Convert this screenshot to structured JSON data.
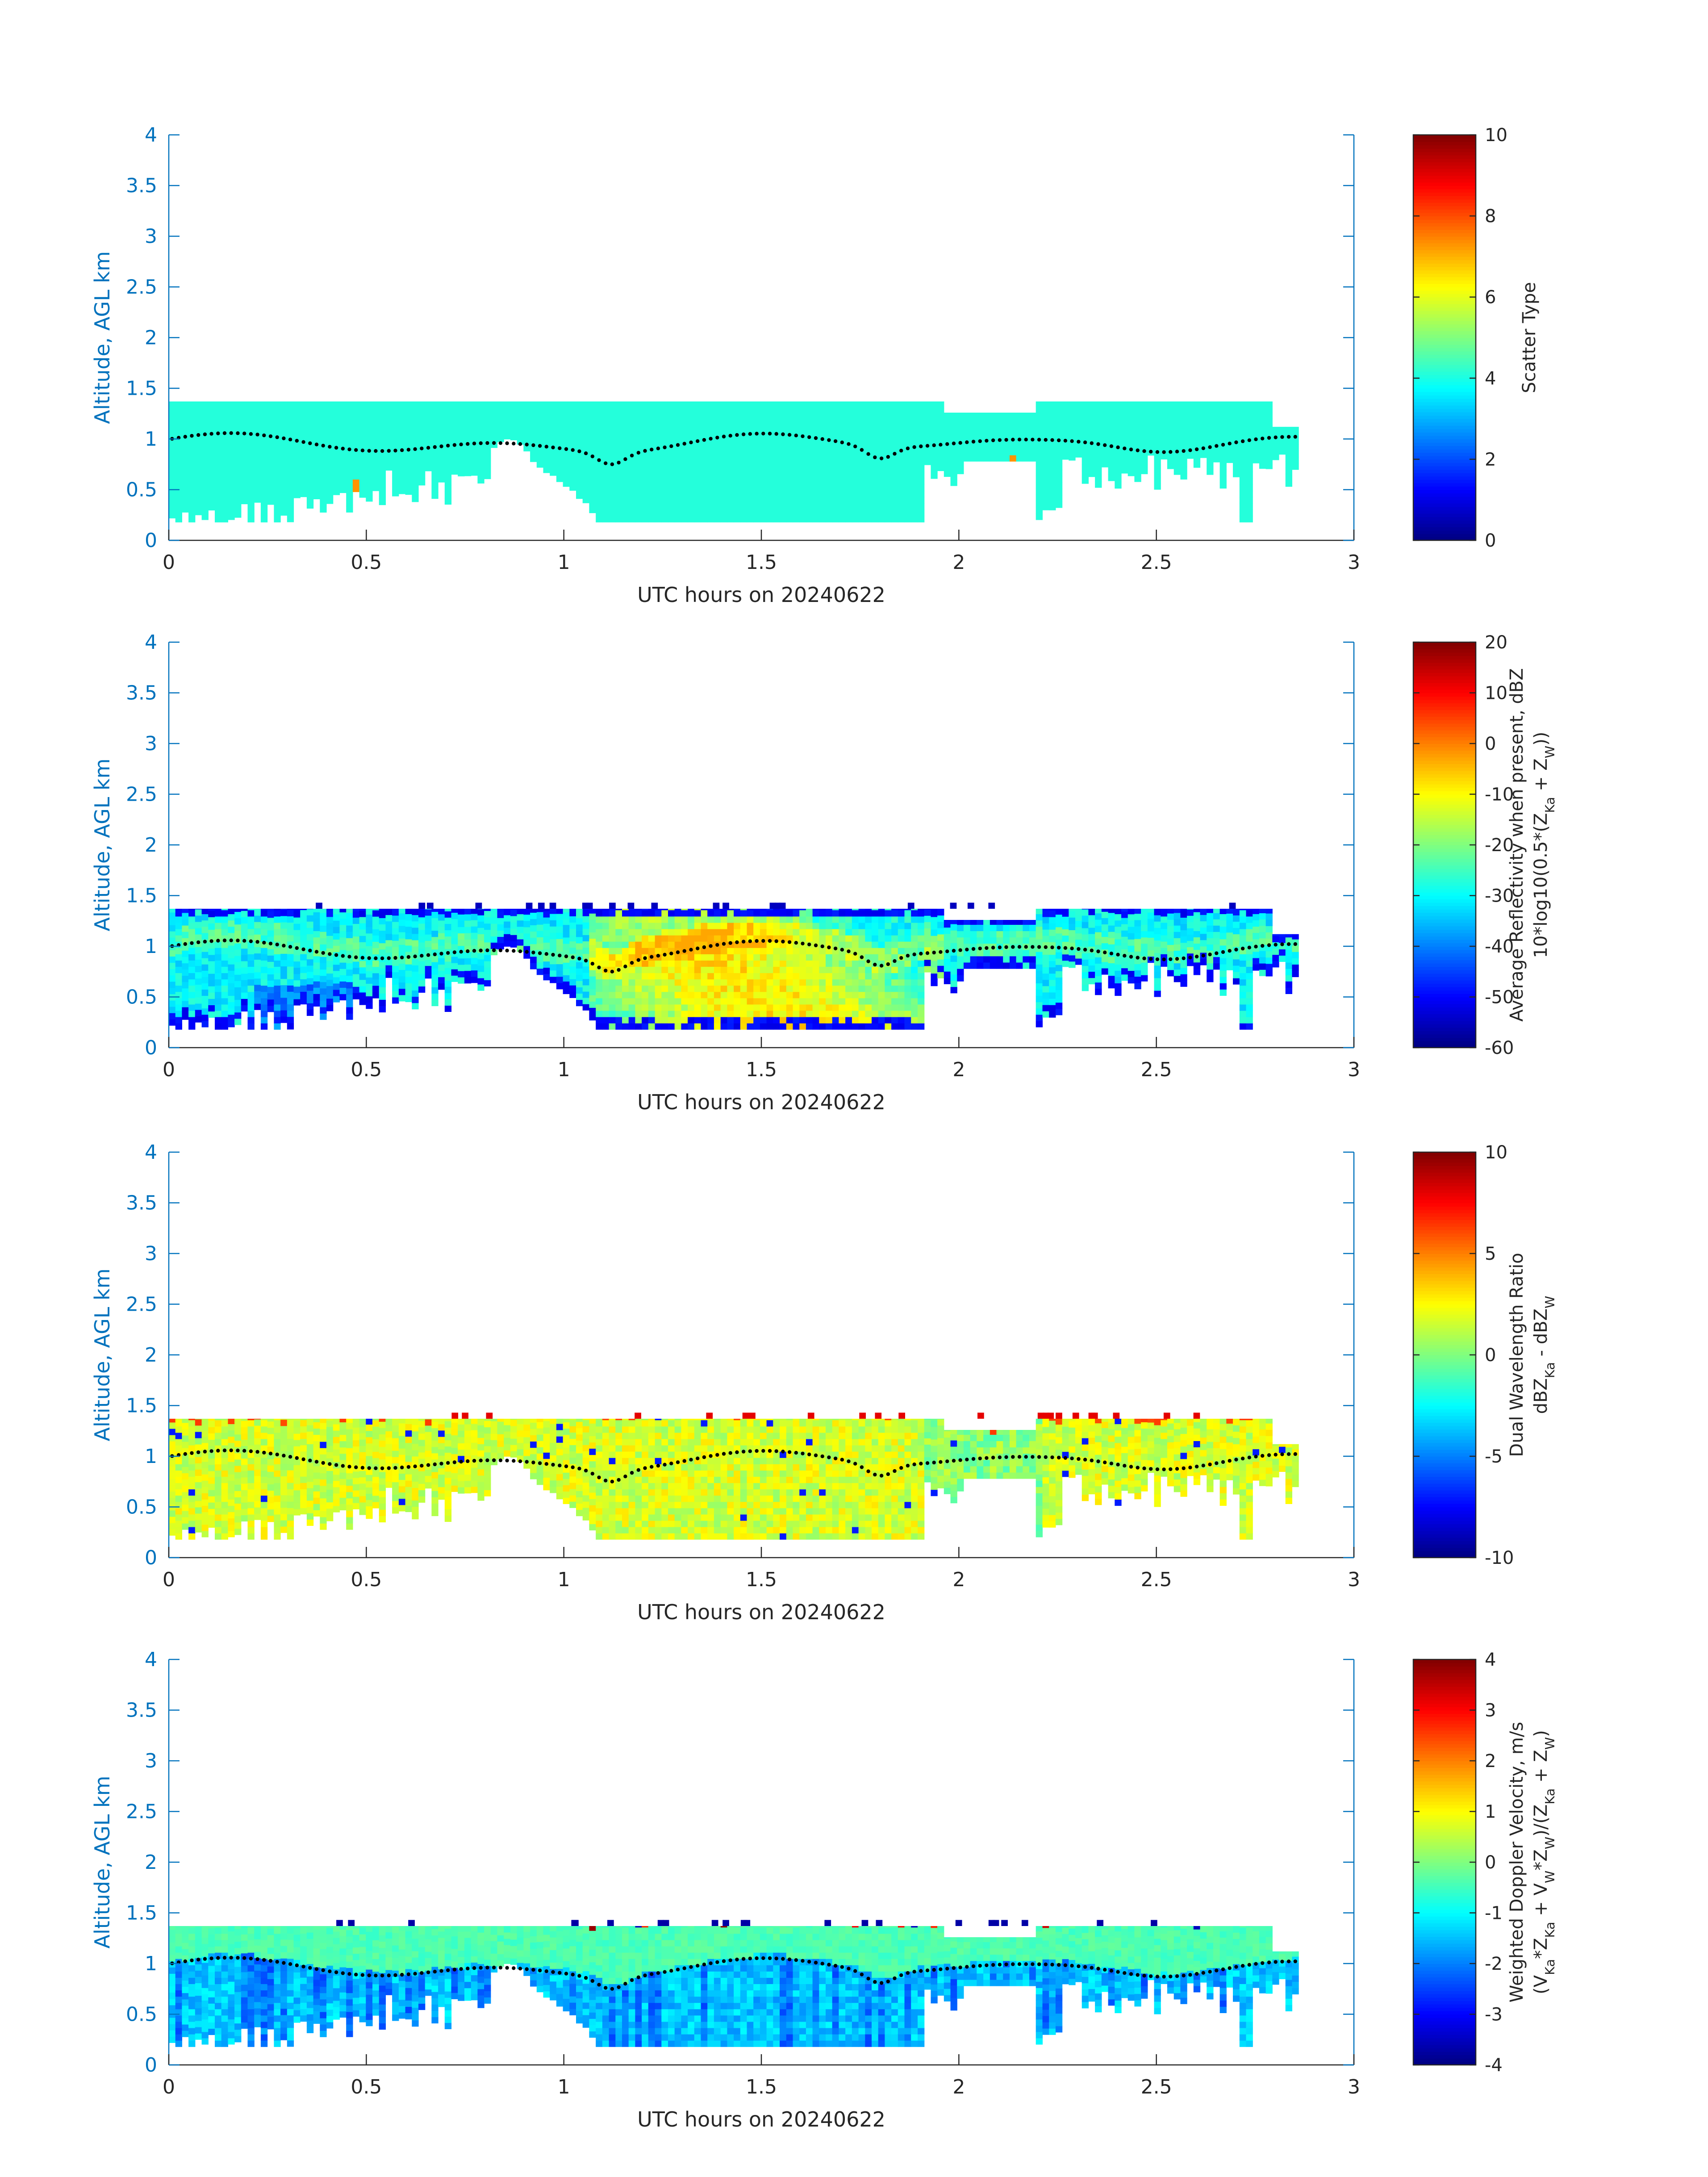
{
  "figure": {
    "background": "#ffffff",
    "axis_color": "#0072BD",
    "text_color": "#262626"
  },
  "chart_data": [
    {
      "type": "heatmap",
      "title": "",
      "xlabel": "UTC hours on 20240622",
      "ylabel": "Altitude, AGL km",
      "xlim": [
        0,
        3
      ],
      "ylim": [
        0,
        4
      ],
      "xticks": [
        "0",
        "0.5",
        "1",
        "1.5",
        "2",
        "2.5",
        "3"
      ],
      "yticks": [
        "0",
        "0.5",
        "1",
        "1.5",
        "2",
        "2.5",
        "3",
        "3.5",
        "4"
      ],
      "colorbar": {
        "label_lines": [
          "Scatter Type"
        ],
        "clim": [
          0,
          10
        ],
        "ticks": [
          "0",
          "2",
          "4",
          "6",
          "8",
          "10"
        ],
        "colormap": "jet"
      },
      "field": "scatter_type",
      "summary": "nearly uniform value ~4 (cyan) throughout cloud layer, a few cells ~7 near 0.46 h and 2.14 h",
      "cloud_top_km": 1.37,
      "data_end_hr": 2.86,
      "overlay": "black dotted line: cloud-base height ~0.8-1.1 km"
    },
    {
      "type": "heatmap",
      "title": "",
      "xlabel": "UTC hours on 20240622",
      "ylabel": "Altitude, AGL km",
      "xlim": [
        0,
        3
      ],
      "ylim": [
        0,
        4
      ],
      "xticks": [
        "0",
        "0.5",
        "1",
        "1.5",
        "2",
        "2.5",
        "3"
      ],
      "yticks": [
        "0",
        "0.5",
        "1",
        "1.5",
        "2",
        "2.5",
        "3",
        "3.5",
        "4"
      ],
      "colorbar": {
        "label_lines": [
          "Average Reflectivity when present, dBZ",
          "10*log10(0.5*(Z_Ka + Z_W))"
        ],
        "clim": [
          -60,
          20
        ],
        "ticks": [
          "-60",
          "-50",
          "-40",
          "-30",
          "-20",
          "-10",
          "0",
          "10",
          "20"
        ],
        "colormap": "jet"
      },
      "field": "reflectivity",
      "summary": "-50 dBZ at cloud top and bottom edges, -30 to -20 dBZ mid-layer, up to about -5 dBZ near 1.2-1.9 h",
      "cloud_top_km": 1.37,
      "data_end_hr": 2.86,
      "overlay": "black dotted line: cloud-base height ~0.8-1.1 km"
    },
    {
      "type": "heatmap",
      "title": "",
      "xlabel": "UTC hours on 20240622",
      "ylabel": "Altitude, AGL km",
      "xlim": [
        0,
        3
      ],
      "ylim": [
        0,
        4
      ],
      "xticks": [
        "0",
        "0.5",
        "1",
        "1.5",
        "2",
        "2.5",
        "3"
      ],
      "yticks": [
        "0",
        "0.5",
        "1",
        "1.5",
        "2",
        "2.5",
        "3",
        "3.5",
        "4"
      ],
      "colorbar": {
        "label_lines": [
          "Dual Wavelength Ratio",
          "dBZ_Ka - dBZ_W"
        ],
        "clim": [
          -10,
          10
        ],
        "ticks": [
          "-10",
          "-5",
          "0",
          "5",
          "10"
        ],
        "colormap": "jet"
      },
      "field": "dual_wavelength_ratio",
      "summary": "mostly 0 to +3 dB (green-yellow), noisy cells up to +8 dB near cloud top",
      "cloud_top_km": 1.37,
      "data_end_hr": 2.86,
      "overlay": "black dotted line: cloud-base height ~0.8-1.1 km"
    },
    {
      "type": "heatmap",
      "title": "",
      "xlabel": "UTC hours on 20240622",
      "ylabel": "Altitude, AGL km",
      "xlim": [
        0,
        3
      ],
      "ylim": [
        0,
        4
      ],
      "xticks": [
        "0",
        "0.5",
        "1",
        "1.5",
        "2",
        "2.5",
        "3"
      ],
      "yticks": [
        "0",
        "0.5",
        "1",
        "1.5",
        "2",
        "2.5",
        "3",
        "3.5",
        "4"
      ],
      "colorbar": {
        "label_lines": [
          "Weighted Doppler Velocity, m/s",
          "(V_Ka*Z_Ka + V_W*Z_W)/(Z_Ka + Z_W)"
        ],
        "clim": [
          -4,
          4
        ],
        "ticks": [
          "-4",
          "-3",
          "-2",
          "-1",
          "0",
          "1",
          "2",
          "3",
          "4"
        ],
        "colormap": "jet"
      },
      "field": "doppler_velocity",
      "summary": "near 0 m/s (green) near cloud top, -1 to -1.5 m/s (cyan) in lower layer",
      "cloud_top_km": 1.37,
      "data_end_hr": 2.86,
      "overlay": "black dotted line: cloud-base height ~0.8-1.1 km"
    }
  ]
}
